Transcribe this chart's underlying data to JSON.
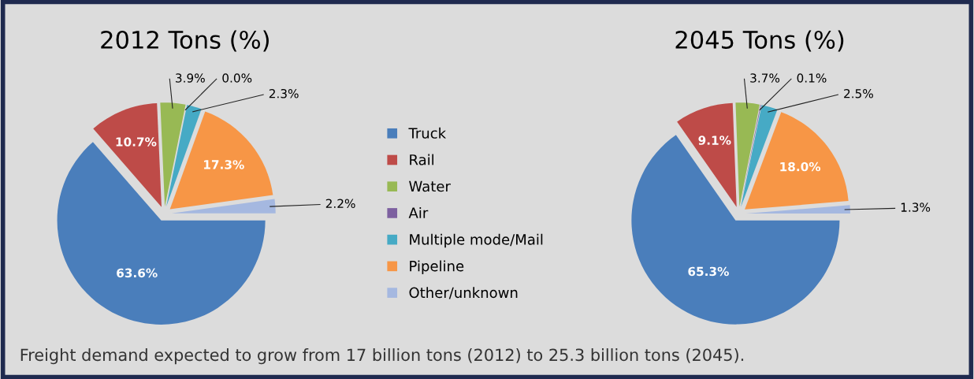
{
  "chart_data": [
    {
      "type": "pie",
      "title": "2012 Tons (%)",
      "categories": [
        "Truck",
        "Rail",
        "Water",
        "Air",
        "Multiple mode/Mail",
        "Pipeline",
        "Other/unknown"
      ],
      "values": [
        63.6,
        10.7,
        3.9,
        0.0,
        2.3,
        17.3,
        2.2
      ],
      "colors": [
        "#4a7ebb",
        "#be4b48",
        "#98b954",
        "#7d60a0",
        "#46aac5",
        "#f79646",
        "#a5b8e0"
      ],
      "value_labels": [
        "63.6%",
        "10.7%",
        "3.9%",
        "0.0%",
        "2.3%",
        "17.3%",
        "2.2%"
      ],
      "legend": "right",
      "annotations": [
        "Freight demand expected to grow from 17 billion tons (2012) to 25.3 billion tons (2045)."
      ]
    },
    {
      "type": "pie",
      "title": "2045 Tons (%)",
      "categories": [
        null,
        null,
        null,
        null,
        null,
        null,
        null
      ],
      "values": [
        65.3,
        9.1,
        3.7,
        0.1,
        2.5,
        18.0,
        1.3
      ],
      "colors": [
        "#4a7ebb",
        "#be4b48",
        "#98b954",
        "#7d60a0",
        "#46aac5",
        "#f79646",
        "#a5b8e0"
      ],
      "value_labels": [
        "65.3%",
        "9.1%",
        "3.7%",
        "0.1%",
        "2.5%",
        "18.0%",
        "1.3%"
      ]
    }
  ]
}
